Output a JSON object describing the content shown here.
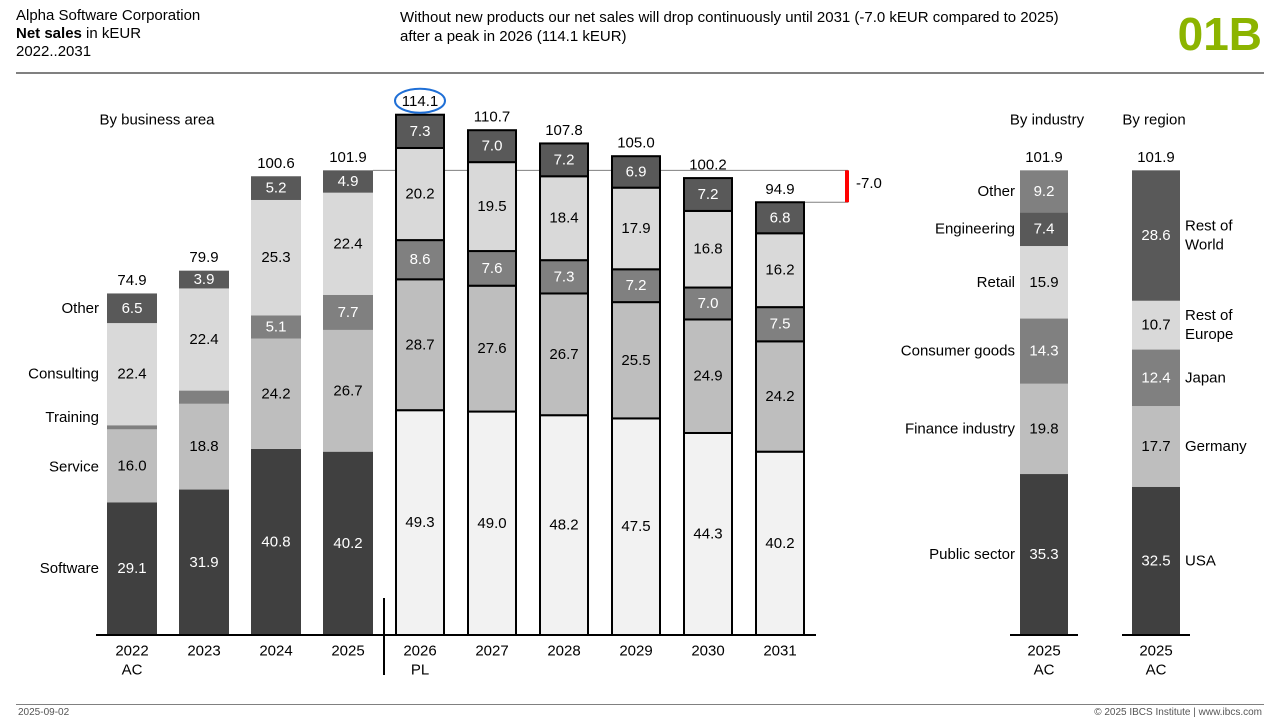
{
  "header": {
    "company": "Alpha Software Corporation",
    "measure_bold": "Net sales",
    "measure_unit": " in kEUR",
    "period": "2022..2031",
    "message_line1": "Without new products our net sales will drop continuously until 2031 (-7.0 kEUR compared to 2025)",
    "message_line2": "after a peak in 2026 (114.1 kEUR)",
    "page_code": "01B"
  },
  "footer": {
    "date": "2025-09-02",
    "copyright": "© 2025 IBCS Institute | www.ibcs.com"
  },
  "colors": {
    "code_green": "#8cb400",
    "software": "#404040",
    "service": "#bebebe",
    "training": "#808080",
    "consulting": "#d9d9d9",
    "other": "#595959",
    "plan_software": "#f2f2f2",
    "delta_red": "#ff0000",
    "highlight_blue": "#1f6fd6"
  },
  "chart_data": [
    {
      "type": "bar",
      "stacked": true,
      "title": "By business area",
      "categories": [
        "2022",
        "2023",
        "2024",
        "2025",
        "2026",
        "2027",
        "2028",
        "2029",
        "2030",
        "2031"
      ],
      "category_sublabels": [
        "AC",
        "",
        "",
        "",
        "PL",
        "",
        "",
        "",
        "",
        ""
      ],
      "scenario": [
        "AC",
        "AC",
        "AC",
        "AC",
        "PL",
        "PL",
        "PL",
        "PL",
        "PL",
        "PL"
      ],
      "series": [
        {
          "name": "Software",
          "values": [
            29.1,
            31.9,
            40.8,
            40.2,
            49.3,
            49.0,
            48.2,
            47.5,
            44.3,
            40.2
          ],
          "labels": [
            "29.1",
            "31.9",
            "40.8",
            "40.2",
            "49.3",
            "49.0",
            "48.2",
            "47.5",
            "44.3",
            "40.2"
          ]
        },
        {
          "name": "Service",
          "values": [
            16.0,
            18.8,
            24.2,
            26.7,
            28.7,
            27.6,
            26.7,
            25.5,
            24.9,
            24.2
          ],
          "labels": [
            "16.0",
            "18.8",
            "24.2",
            "26.7",
            "28.7",
            "27.6",
            "26.7",
            "25.5",
            "24.9",
            "24.2"
          ]
        },
        {
          "name": "Training",
          "values": [
            0.9,
            2.9,
            5.1,
            7.7,
            8.6,
            7.6,
            7.3,
            7.2,
            7.0,
            7.5
          ],
          "labels": [
            "",
            "",
            "5.1",
            "7.7",
            "8.6",
            "7.6",
            "7.3",
            "7.2",
            "7.0",
            "7.5"
          ]
        },
        {
          "name": "Consulting",
          "values": [
            22.4,
            22.4,
            25.3,
            22.4,
            20.2,
            19.5,
            18.4,
            17.9,
            16.8,
            16.2
          ],
          "labels": [
            "22.4",
            "22.4",
            "25.3",
            "22.4",
            "20.2",
            "19.5",
            "18.4",
            "17.9",
            "16.8",
            "16.2"
          ]
        },
        {
          "name": "Other",
          "values": [
            6.5,
            3.9,
            5.2,
            4.9,
            7.3,
            7.0,
            7.2,
            6.9,
            7.2,
            6.8
          ],
          "labels": [
            "6.5",
            "3.9",
            "5.2",
            "4.9",
            "7.3",
            "7.0",
            "7.2",
            "6.9",
            "7.2",
            "6.8"
          ]
        }
      ],
      "totals": [
        "74.9",
        "79.9",
        "100.6",
        "101.9",
        "114.1",
        "110.7",
        "107.8",
        "105.0",
        "100.2",
        "94.9"
      ],
      "total_values": [
        74.9,
        79.9,
        100.6,
        101.9,
        114.1,
        110.7,
        107.8,
        105.0,
        100.2,
        94.9
      ],
      "highlighted_total": "2026",
      "reference_value": 101.9,
      "delta": {
        "from": "2025",
        "to": "2031",
        "value": -7.0,
        "label": "-7.0"
      },
      "legend_position": "left"
    },
    {
      "type": "bar",
      "stacked": true,
      "title": "By industry",
      "categories": [
        "2025"
      ],
      "category_sublabels": [
        "AC"
      ],
      "series": [
        {
          "name": "Public sector",
          "values": [
            35.3
          ],
          "labels": [
            "35.3"
          ],
          "color": "#404040"
        },
        {
          "name": "Finance industry",
          "values": [
            19.8
          ],
          "labels": [
            "19.8"
          ],
          "color": "#bebebe"
        },
        {
          "name": "Consumer goods",
          "values": [
            14.3
          ],
          "labels": [
            "14.3"
          ],
          "color": "#808080"
        },
        {
          "name": "Retail",
          "values": [
            15.9
          ],
          "labels": [
            "15.9"
          ],
          "color": "#d9d9d9"
        },
        {
          "name": "Engineering",
          "values": [
            7.4
          ],
          "labels": [
            "7.4"
          ],
          "color": "#595959"
        },
        {
          "name": "Other",
          "values": [
            9.2
          ],
          "labels": [
            "9.2"
          ],
          "color": "#808080"
        }
      ],
      "totals": [
        "101.9"
      ],
      "legend_position": "left"
    },
    {
      "type": "bar",
      "stacked": true,
      "title": "By region",
      "categories": [
        "2025"
      ],
      "category_sublabels": [
        "AC"
      ],
      "series": [
        {
          "name": "USA",
          "values": [
            32.5
          ],
          "labels": [
            "32.5"
          ],
          "color": "#404040"
        },
        {
          "name": "Germany",
          "values": [
            17.7
          ],
          "labels": [
            "17.7"
          ],
          "color": "#bebebe"
        },
        {
          "name": "Japan",
          "values": [
            12.4
          ],
          "labels": [
            "12.4"
          ],
          "color": "#808080"
        },
        {
          "name": "Rest of Europe",
          "values": [
            10.7
          ],
          "labels": [
            "10.7"
          ],
          "color": "#d9d9d9",
          "legend_lines": [
            "Rest of",
            "Europe"
          ]
        },
        {
          "name": "Rest of World",
          "values": [
            28.6
          ],
          "labels": [
            "28.6"
          ],
          "color": "#595959",
          "legend_lines": [
            "Rest of",
            "World"
          ]
        }
      ],
      "totals": [
        "101.9"
      ],
      "legend_position": "right"
    }
  ]
}
